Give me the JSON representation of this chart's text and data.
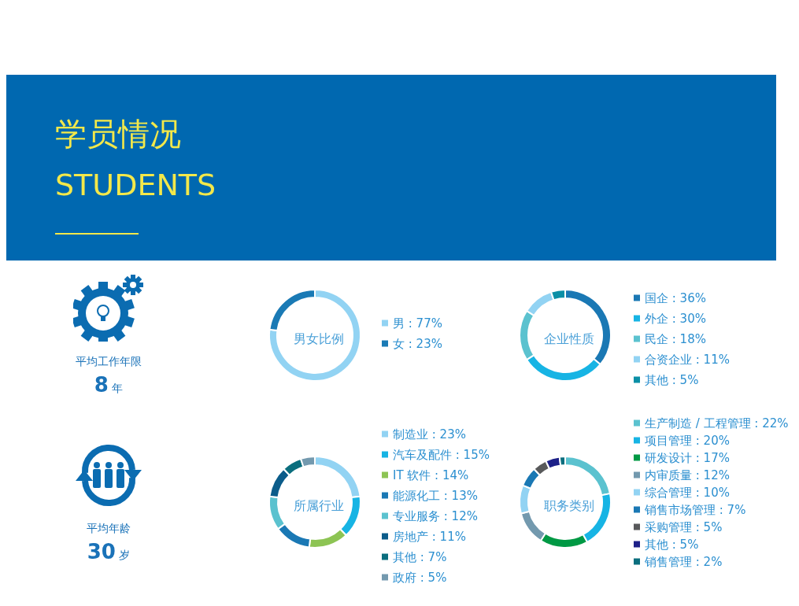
{
  "chart_data": [
    {
      "type": "other",
      "title": "学员情况",
      "subtitle": "STUDENTS",
      "annotations": [
        "平均工作年限",
        "8",
        "年",
        "平均年龄",
        "30",
        "岁"
      ]
    },
    {
      "type": "donut",
      "title": "男女比例",
      "categories": [
        "男",
        "女"
      ],
      "values": [
        77,
        23
      ],
      "value_labels": [
        "77%",
        "23%"
      ],
      "colors": [
        "#92d3f3",
        "#1a7ab5"
      ],
      "legend": "right"
    },
    {
      "type": "donut",
      "title": "企业性质",
      "categories": [
        "国企",
        "外企",
        "民企",
        "合资企业",
        "其他"
      ],
      "values": [
        36,
        30,
        18,
        11,
        5
      ],
      "value_labels": [
        "36%",
        "30%",
        "18%",
        "11%",
        "5%"
      ],
      "colors": [
        "#1a78b4",
        "#17b4e4",
        "#5bc2cf",
        "#92d3f3",
        "#0a8fa6"
      ],
      "legend": "right"
    },
    {
      "type": "donut",
      "title": "所属行业",
      "categories": [
        "制造业",
        "汽车及配件",
        "IT 软件",
        "能源化工",
        "专业服务",
        "房地产",
        "其他",
        "政府"
      ],
      "values": [
        23,
        15,
        14,
        13,
        12,
        11,
        7,
        5
      ],
      "value_labels": [
        "23%",
        "15%",
        "14%",
        "13%",
        "12%",
        "11%",
        "7%",
        "5%"
      ],
      "colors": [
        "#92d3f3",
        "#17b4e4",
        "#8dc454",
        "#1a78b4",
        "#5bc2cf",
        "#0b5c8a",
        "#0b6e7e",
        "#7399ae"
      ],
      "legend": "right"
    },
    {
      "type": "donut",
      "title": "职务类别",
      "categories": [
        "生产制造 / 工程管理",
        "项目管理",
        "研发设计",
        "内审质量",
        "综合管理",
        "销售市场管理",
        "采购管理",
        "其他",
        "销售管理"
      ],
      "values": [
        22,
        20,
        17,
        12,
        10,
        7,
        5,
        5,
        2
      ],
      "value_labels": [
        "22%",
        "20%",
        "17%",
        "12%",
        "10%",
        "7%",
        "5%",
        "5%",
        "2%"
      ],
      "colors": [
        "#5bc2cf",
        "#17b4e4",
        "#009944",
        "#7399ae",
        "#92d3f3",
        "#1a78b4",
        "#58595b",
        "#1d2088",
        "#0b6e7e"
      ],
      "legend": "right"
    }
  ]
}
